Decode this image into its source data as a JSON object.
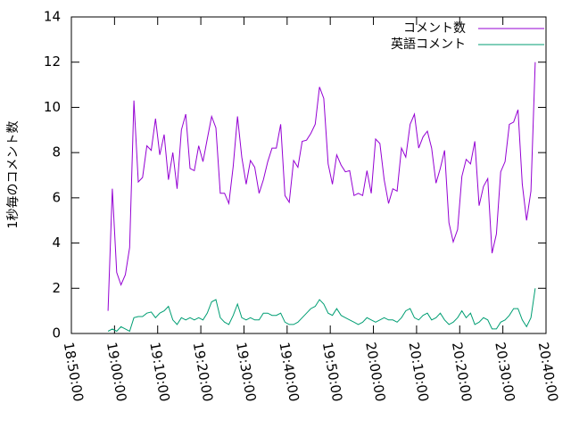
{
  "chart_data": {
    "type": "line",
    "y_label": "1秒毎のコメント数",
    "x": [
      "18:58:30",
      "18:59:30",
      "19:00:30",
      "19:01:30",
      "19:02:30",
      "19:03:30",
      "19:04:30",
      "19:05:30",
      "19:06:30",
      "19:07:30",
      "19:08:30",
      "19:09:30",
      "19:10:30",
      "19:11:30",
      "19:12:30",
      "19:13:30",
      "19:14:30",
      "19:15:30",
      "19:16:30",
      "19:17:30",
      "19:18:30",
      "19:19:30",
      "19:20:30",
      "19:21:30",
      "19:22:30",
      "19:23:30",
      "19:24:30",
      "19:25:30",
      "19:26:30",
      "19:27:30",
      "19:28:30",
      "19:29:30",
      "19:30:30",
      "19:31:30",
      "19:32:30",
      "19:33:30",
      "19:34:30",
      "19:35:30",
      "19:36:30",
      "19:37:30",
      "19:38:30",
      "19:39:30",
      "19:40:30",
      "19:41:30",
      "19:42:30",
      "19:43:30",
      "19:44:30",
      "19:45:30",
      "19:46:30",
      "19:47:30",
      "19:48:30",
      "19:49:30",
      "19:50:30",
      "19:51:30",
      "19:52:30",
      "19:53:30",
      "19:54:30",
      "19:55:30",
      "19:56:30",
      "19:57:30",
      "19:58:30",
      "19:59:30",
      "20:00:30",
      "20:01:30",
      "20:02:30",
      "20:03:30",
      "20:04:30",
      "20:05:30",
      "20:06:30",
      "20:07:30",
      "20:08:30",
      "20:09:30",
      "20:10:30",
      "20:11:30",
      "20:12:30",
      "20:13:30",
      "20:14:30",
      "20:15:30",
      "20:16:30",
      "20:17:30",
      "20:18:30",
      "20:19:30",
      "20:20:30",
      "20:21:30",
      "20:22:30",
      "20:23:30",
      "20:24:30",
      "20:25:30",
      "20:26:30",
      "20:27:30",
      "20:28:30",
      "20:29:30",
      "20:30:30",
      "20:31:30",
      "20:32:30",
      "20:33:30",
      "20:34:30",
      "20:35:30",
      "20:36:30",
      "20:37:30"
    ],
    "series": [
      {
        "name": "コメント数",
        "color": "#9400d3",
        "values": [
          1.0,
          6.4,
          2.7,
          2.15,
          2.6,
          3.8,
          10.3,
          6.7,
          6.9,
          8.3,
          8.1,
          9.5,
          7.9,
          8.8,
          6.8,
          8.0,
          6.4,
          9.0,
          9.7,
          7.3,
          7.2,
          8.3,
          7.6,
          8.6,
          9.6,
          9.1,
          6.2,
          6.2,
          5.75,
          7.4,
          9.6,
          7.8,
          6.6,
          7.65,
          7.35,
          6.2,
          6.8,
          7.6,
          8.2,
          8.2,
          9.25,
          6.1,
          5.8,
          7.65,
          7.35,
          8.5,
          8.55,
          8.85,
          9.25,
          10.9,
          10.4,
          7.5,
          6.6,
          7.9,
          7.45,
          7.15,
          7.2,
          6.1,
          6.2,
          6.1,
          7.2,
          6.2,
          8.6,
          8.4,
          6.8,
          5.75,
          6.4,
          6.3,
          8.2,
          7.8,
          9.25,
          9.7,
          8.2,
          8.7,
          8.95,
          8.2,
          6.65,
          7.3,
          8.1,
          4.9,
          4.05,
          4.6,
          6.95,
          7.7,
          7.5,
          8.5,
          5.65,
          6.5,
          6.85,
          3.55,
          4.4,
          7.15,
          7.6,
          9.25,
          9.35,
          9.9,
          6.6,
          5.0,
          6.3,
          12.0
        ]
      },
      {
        "name": "英語コメント",
        "color": "#009e73",
        "values": [
          0.1,
          0.2,
          0.1,
          0.3,
          0.2,
          0.1,
          0.7,
          0.75,
          0.75,
          0.9,
          0.95,
          0.7,
          0.9,
          1.0,
          1.2,
          0.6,
          0.4,
          0.7,
          0.6,
          0.7,
          0.6,
          0.7,
          0.6,
          0.9,
          1.4,
          1.5,
          0.7,
          0.5,
          0.4,
          0.8,
          1.3,
          0.7,
          0.6,
          0.7,
          0.6,
          0.6,
          0.9,
          0.9,
          0.8,
          0.8,
          0.9,
          0.5,
          0.4,
          0.4,
          0.5,
          0.7,
          0.9,
          1.1,
          1.2,
          1.5,
          1.3,
          0.9,
          0.8,
          1.1,
          0.8,
          0.7,
          0.6,
          0.5,
          0.4,
          0.5,
          0.7,
          0.6,
          0.5,
          0.6,
          0.7,
          0.6,
          0.6,
          0.5,
          0.7,
          1.0,
          1.1,
          0.7,
          0.6,
          0.8,
          0.9,
          0.6,
          0.7,
          0.9,
          0.6,
          0.4,
          0.5,
          0.7,
          1.0,
          0.7,
          0.9,
          0.4,
          0.5,
          0.7,
          0.6,
          0.2,
          0.2,
          0.5,
          0.6,
          0.8,
          1.1,
          1.1,
          0.6,
          0.3,
          0.7,
          2.0
        ]
      }
    ],
    "xlim": [
      "18:50:00",
      "20:40:00"
    ],
    "xticks": [
      "18:50:00",
      "19:00:00",
      "19:10:00",
      "19:20:00",
      "19:30:00",
      "19:40:00",
      "19:50:00",
      "20:00:00",
      "20:10:00",
      "20:20:00",
      "20:30:00",
      "20:40:00"
    ],
    "ylim": [
      0,
      14
    ],
    "yticks": [
      0,
      2,
      4,
      6,
      8,
      10,
      12,
      14
    ],
    "legend": "top-right"
  }
}
